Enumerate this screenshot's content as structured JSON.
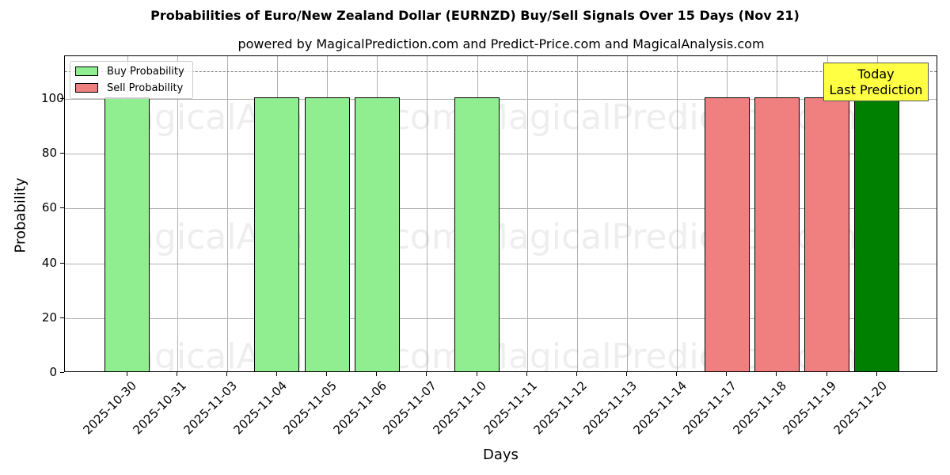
{
  "chart_data": {
    "type": "bar",
    "title": "Probabilities of Euro/New Zealand Dollar (EURNZD) Buy/Sell Signals Over 15 Days (Nov 21)",
    "subtitle": "powered by MagicalPrediction.com and Predict-Price.com and MagicalAnalysis.com",
    "xlabel": "Days",
    "ylabel": "Probability",
    "ylim": [
      0,
      115
    ],
    "yticks": [
      0,
      20,
      40,
      60,
      80,
      100
    ],
    "grid": true,
    "legend_position": "upper left",
    "categories": [
      "2025-10-30",
      "2025-10-31",
      "2025-11-03",
      "2025-11-04",
      "2025-11-05",
      "2025-11-06",
      "2025-11-07",
      "2025-11-10",
      "2025-11-11",
      "2025-11-12",
      "2025-11-13",
      "2025-11-14",
      "2025-11-17",
      "2025-11-18",
      "2025-11-19",
      "2025-11-20"
    ],
    "series": [
      {
        "name": "Buy Probability",
        "color": "#90ee90",
        "values": [
          100,
          0,
          0,
          100,
          100,
          100,
          0,
          100,
          0,
          0,
          0,
          0,
          0,
          0,
          0,
          100
        ]
      },
      {
        "name": "Sell Probability",
        "color": "#f08080",
        "values": [
          0,
          0,
          0,
          0,
          0,
          0,
          0,
          0,
          0,
          0,
          0,
          0,
          100,
          100,
          100,
          0
        ]
      }
    ],
    "highlight": {
      "category": "2025-11-20",
      "color": "#008000",
      "annotation": "Today\nLast Prediction"
    },
    "reference_line": {
      "y": 110,
      "style": "dashed",
      "color": "#808080"
    },
    "annotation_lines": [
      "Today",
      "Last Prediction"
    ],
    "watermarks": [
      "MagicalAnalysis.com",
      "MagicalPrediction.com"
    ]
  }
}
